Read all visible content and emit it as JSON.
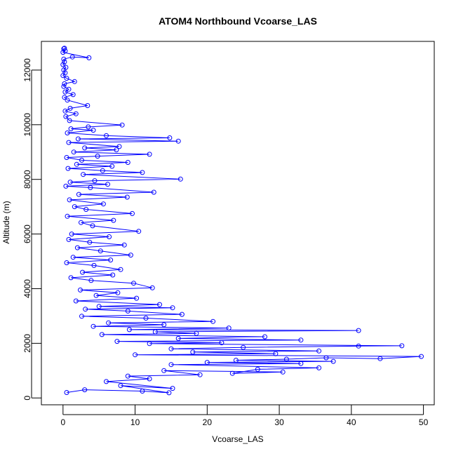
{
  "chart_data": {
    "type": "line",
    "title": "ATOM4 Northbound Vcoarse_LAS",
    "xlabel": "Vcoarse_LAS",
    "ylabel": "Altitude (m)",
    "xlim": [
      -3,
      51.5
    ],
    "ylim": [
      -250,
      13050
    ],
    "x_ticks": [
      0,
      10,
      20,
      30,
      40,
      50
    ],
    "y_ticks": [
      0,
      2000,
      4000,
      6000,
      8000,
      10000,
      12000
    ],
    "grid": false,
    "legend": "none",
    "marker": "open-circle",
    "colors": {
      "series": "#0000ff",
      "frame": "#000000"
    },
    "series": [
      {
        "values_xy": [
          [
            0.2,
            12800
          ],
          [
            0.1,
            12780
          ],
          [
            0.3,
            12700
          ],
          [
            0.0,
            12650
          ],
          [
            3.6,
            12450
          ],
          [
            1.3,
            12480
          ],
          [
            0.1,
            12400
          ],
          [
            0.2,
            12300
          ],
          [
            0.0,
            12200
          ],
          [
            0.4,
            12100
          ],
          [
            0.1,
            12000
          ],
          [
            0.3,
            11900
          ],
          [
            0.0,
            11800
          ],
          [
            0.5,
            11700
          ],
          [
            1.6,
            11580
          ],
          [
            0.2,
            11500
          ],
          [
            0.1,
            11400
          ],
          [
            0.8,
            11300
          ],
          [
            0.3,
            11200
          ],
          [
            1.4,
            11100
          ],
          [
            0.2,
            11000
          ],
          [
            0.6,
            10900
          ],
          [
            3.4,
            10700
          ],
          [
            1.0,
            10600
          ],
          [
            0.3,
            10500
          ],
          [
            1.8,
            10400
          ],
          [
            0.4,
            10300
          ],
          [
            0.9,
            10150
          ],
          [
            8.2,
            9990
          ],
          [
            3.5,
            9920
          ],
          [
            1.1,
            9850
          ],
          [
            4.2,
            9800
          ],
          [
            0.6,
            9700
          ],
          [
            6.0,
            9600
          ],
          [
            14.8,
            9520
          ],
          [
            2.1,
            9480
          ],
          [
            16.0,
            9400
          ],
          [
            0.8,
            9350
          ],
          [
            7.8,
            9200
          ],
          [
            3.0,
            9150
          ],
          [
            7.4,
            9080
          ],
          [
            1.5,
            9000
          ],
          [
            12.0,
            8920
          ],
          [
            4.8,
            8850
          ],
          [
            0.5,
            8800
          ],
          [
            2.6,
            8700
          ],
          [
            9.0,
            8620
          ],
          [
            1.9,
            8550
          ],
          [
            6.8,
            8480
          ],
          [
            0.7,
            8400
          ],
          [
            5.5,
            8320
          ],
          [
            11.0,
            8250
          ],
          [
            2.8,
            8180
          ],
          [
            16.3,
            8010
          ],
          [
            4.4,
            7950
          ],
          [
            1.0,
            7900
          ],
          [
            6.2,
            7820
          ],
          [
            0.4,
            7750
          ],
          [
            3.8,
            7700
          ],
          [
            12.6,
            7530
          ],
          [
            2.2,
            7450
          ],
          [
            8.9,
            7350
          ],
          [
            0.9,
            7250
          ],
          [
            5.6,
            7100
          ],
          [
            1.6,
            7000
          ],
          [
            3.2,
            6900
          ],
          [
            9.6,
            6750
          ],
          [
            0.6,
            6650
          ],
          [
            7.0,
            6500
          ],
          [
            2.5,
            6420
          ],
          [
            4.1,
            6300
          ],
          [
            10.5,
            6100
          ],
          [
            1.2,
            6000
          ],
          [
            6.4,
            5900
          ],
          [
            0.8,
            5800
          ],
          [
            3.7,
            5700
          ],
          [
            8.5,
            5600
          ],
          [
            2.0,
            5500
          ],
          [
            5.2,
            5380
          ],
          [
            9.4,
            5230
          ],
          [
            1.4,
            5150
          ],
          [
            6.6,
            5050
          ],
          [
            0.5,
            4950
          ],
          [
            4.3,
            4850
          ],
          [
            8.0,
            4700
          ],
          [
            2.7,
            4600
          ],
          [
            6.9,
            4500
          ],
          [
            1.1,
            4400
          ],
          [
            3.9,
            4300
          ],
          [
            9.8,
            4200
          ],
          [
            12.4,
            4030
          ],
          [
            2.4,
            3950
          ],
          [
            7.6,
            3850
          ],
          [
            4.6,
            3750
          ],
          [
            10.2,
            3650
          ],
          [
            1.8,
            3550
          ],
          [
            13.4,
            3420
          ],
          [
            5.0,
            3350
          ],
          [
            15.2,
            3300
          ],
          [
            3.1,
            3250
          ],
          [
            9.0,
            3180
          ],
          [
            16.5,
            3060
          ],
          [
            2.6,
            2990
          ],
          [
            11.5,
            2920
          ],
          [
            20.8,
            2800
          ],
          [
            6.3,
            2750
          ],
          [
            14.0,
            2680
          ],
          [
            4.2,
            2620
          ],
          [
            23.0,
            2560
          ],
          [
            9.2,
            2500
          ],
          [
            41.0,
            2470
          ],
          [
            12.8,
            2420
          ],
          [
            18.5,
            2360
          ],
          [
            5.4,
            2320
          ],
          [
            28.0,
            2240
          ],
          [
            16.0,
            2180
          ],
          [
            33.0,
            2120
          ],
          [
            7.5,
            2070
          ],
          [
            22.0,
            2020
          ],
          [
            12.0,
            1990
          ],
          [
            47.0,
            1910
          ],
          [
            41.0,
            1900
          ],
          [
            25.0,
            1850
          ],
          [
            15.0,
            1800
          ],
          [
            35.5,
            1720
          ],
          [
            18.0,
            1680
          ],
          [
            29.5,
            1620
          ],
          [
            10.0,
            1580
          ],
          [
            49.7,
            1520
          ],
          [
            44.0,
            1440
          ],
          [
            36.5,
            1470
          ],
          [
            31.0,
            1420
          ],
          [
            24.0,
            1380
          ],
          [
            37.5,
            1340
          ],
          [
            20.0,
            1300
          ],
          [
            33.0,
            1260
          ],
          [
            15.0,
            1220
          ],
          [
            35.5,
            1100
          ],
          [
            27.0,
            1050
          ],
          [
            23.5,
            900
          ],
          [
            30.5,
            950
          ],
          [
            14.0,
            1000
          ],
          [
            19.0,
            850
          ],
          [
            9.0,
            800
          ],
          [
            12.0,
            700
          ],
          [
            6.0,
            600
          ],
          [
            15.2,
            350
          ],
          [
            8.0,
            450
          ],
          [
            14.7,
            190
          ],
          [
            11.0,
            250
          ],
          [
            3.0,
            300
          ],
          [
            0.5,
            200
          ]
        ]
      }
    ]
  }
}
